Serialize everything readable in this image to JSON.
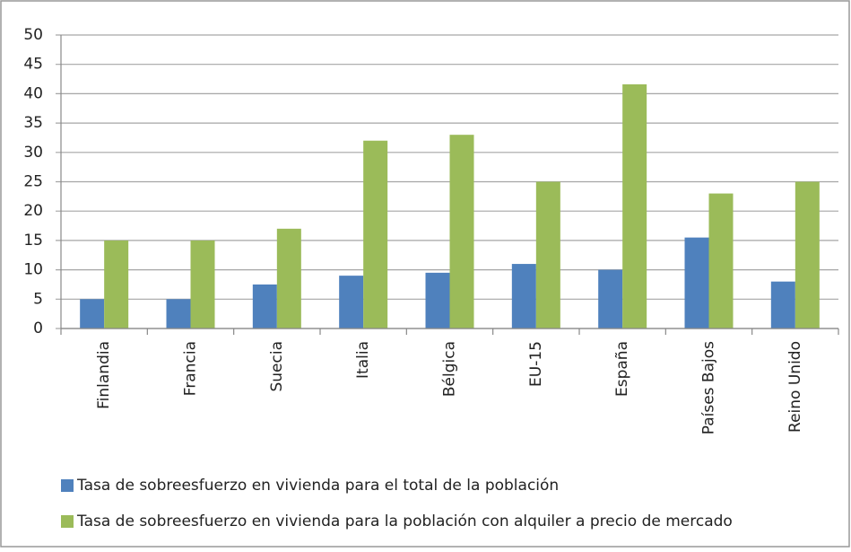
{
  "chart_data": {
    "type": "bar",
    "categories": [
      "Finlandia",
      "Francia",
      "Suecia",
      "Italia",
      "Bélgica",
      "EU-15",
      "España",
      "Países Bajos",
      "Reino Unido"
    ],
    "series": [
      {
        "name": "Tasa de sobreesfuerzo en vivienda para el total de la población",
        "color": "#4f81bd",
        "values": [
          5,
          5,
          7.5,
          9,
          9.5,
          11,
          10,
          15.5,
          8
        ]
      },
      {
        "name": "Tasa de sobreesfuerzo en vivienda para la población con alquiler a precio de mercado",
        "color": "#9bbb59",
        "values": [
          15,
          15,
          17,
          32,
          33,
          25,
          41.6,
          23,
          25
        ]
      }
    ],
    "ylim": [
      0,
      50
    ],
    "yticks": [
      0,
      5,
      10,
      15,
      20,
      25,
      30,
      35,
      40,
      45,
      50
    ],
    "grid": true,
    "legend": "bottom"
  }
}
